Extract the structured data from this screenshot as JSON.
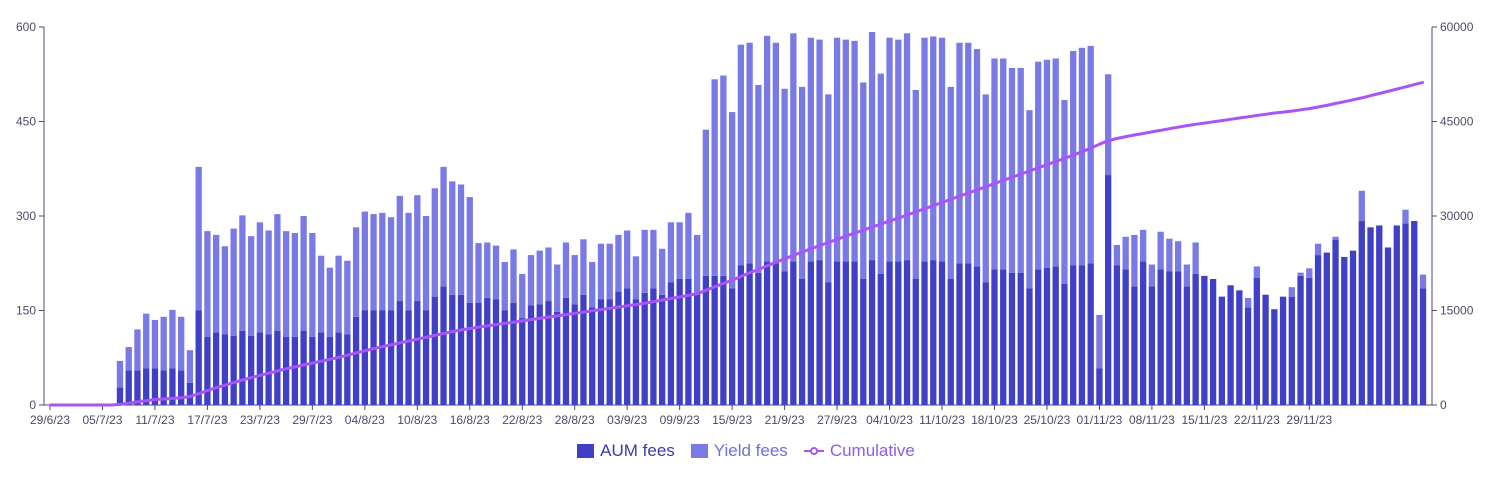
{
  "chart_data": {
    "type": "bar",
    "stacked": true,
    "x_labels": [
      "29/6/23",
      "05/7/23",
      "11/7/23",
      "17/7/23",
      "23/7/23",
      "29/7/23",
      "04/8/23",
      "10/8/23",
      "16/8/23",
      "22/8/23",
      "28/8/23",
      "03/9/23",
      "09/9/23",
      "15/9/23",
      "21/9/23",
      "27/9/23",
      "04/10/23",
      "11/10/23",
      "18/10/23",
      "25/10/23",
      "01/11/23",
      "08/11/23",
      "15/11/23",
      "22/11/23",
      "29/11/23"
    ],
    "left_axis": {
      "ticks": [
        "0",
        "150",
        "300",
        "450",
        "600"
      ],
      "ylim": [
        0,
        600
      ]
    },
    "right_axis": {
      "ticks": [
        "0",
        "15000",
        "30000",
        "45000",
        "60000"
      ],
      "ylim": [
        0,
        60000
      ]
    },
    "series": [
      {
        "name": "AUM fees",
        "color": "#3f3fc8",
        "values": [
          0,
          0,
          0,
          0,
          0,
          0,
          0,
          0,
          28,
          55,
          55,
          58,
          58,
          55,
          58,
          55,
          35,
          150,
          108,
          115,
          112,
          110,
          118,
          110,
          115,
          112,
          118,
          108,
          108,
          118,
          108,
          115,
          108,
          115,
          112,
          140,
          150,
          150,
          150,
          150,
          165,
          150,
          165,
          150,
          172,
          188,
          175,
          175,
          162,
          162,
          170,
          168,
          150,
          162,
          138,
          158,
          160,
          165,
          148,
          170,
          160,
          175,
          155,
          168,
          168,
          180,
          185,
          168,
          178,
          185,
          175,
          195,
          200,
          200,
          178,
          205,
          205,
          205,
          185,
          222,
          225,
          210,
          228,
          225,
          212,
          228,
          200,
          228,
          230,
          195,
          228,
          228,
          228,
          200,
          230,
          208,
          228,
          228,
          230,
          200,
          228,
          230,
          228,
          200,
          225,
          225,
          220,
          195,
          215,
          215,
          210,
          210,
          185,
          215,
          218,
          220,
          192,
          222,
          222,
          225,
          58,
          365,
          222,
          215,
          188,
          228,
          188,
          215,
          212,
          212,
          188,
          208,
          205,
          200,
          172,
          190,
          182,
          155,
          202,
          175,
          152,
          172,
          172,
          205,
          202,
          238,
          242,
          262,
          235,
          245,
          292,
          282,
          285,
          250,
          285,
          288,
          292,
          185
        ]
      },
      {
        "name": "Yield fees",
        "color": "#7a7ae6",
        "values": [
          0,
          0,
          0,
          0,
          0,
          0,
          0,
          0,
          42,
          37,
          65,
          87,
          77,
          85,
          93,
          85,
          52,
          228,
          168,
          155,
          140,
          170,
          183,
          158,
          175,
          165,
          185,
          168,
          165,
          182,
          165,
          122,
          110,
          122,
          117,
          142,
          157,
          153,
          155,
          148,
          167,
          155,
          168,
          150,
          172,
          190,
          180,
          175,
          168,
          95,
          88,
          85,
          77,
          85,
          70,
          80,
          85,
          85,
          75,
          88,
          78,
          88,
          72,
          88,
          88,
          90,
          92,
          68,
          100,
          93,
          73,
          95,
          90,
          105,
          92,
          232,
          312,
          318,
          280,
          350,
          350,
          298,
          358,
          350,
          290,
          362,
          305,
          355,
          350,
          298,
          355,
          352,
          350,
          312,
          362,
          318,
          355,
          352,
          360,
          300,
          355,
          355,
          355,
          305,
          350,
          350,
          345,
          298,
          335,
          335,
          325,
          325,
          283,
          330,
          330,
          330,
          292,
          340,
          345,
          345,
          85,
          160,
          32,
          52,
          82,
          50,
          35,
          60,
          52,
          48,
          35,
          50,
          0,
          0,
          0,
          0,
          0,
          15,
          18,
          0,
          0,
          0,
          15,
          5,
          15,
          18,
          0,
          5,
          0,
          0,
          48,
          0,
          0,
          0,
          0,
          22,
          0,
          22
        ]
      },
      {
        "name": "Cumulative",
        "color": "#a855f7",
        "axis": "right",
        "values": [
          0,
          0,
          0,
          0,
          0,
          0,
          0,
          0,
          100,
          300,
          500,
          700,
          850,
          950,
          1050,
          1150,
          1350,
          1800,
          2300,
          2750,
          3150,
          3550,
          3950,
          4350,
          4700,
          5050,
          5400,
          5750,
          6050,
          6350,
          6650,
          6950,
          7250,
          7550,
          7900,
          8250,
          8600,
          8950,
          9250,
          9550,
          9850,
          10150,
          10450,
          10750,
          11050,
          11350,
          11650,
          11900,
          12150,
          12350,
          12550,
          12750,
          12950,
          13150,
          13350,
          13550,
          13750,
          13950,
          14150,
          14350,
          14550,
          14750,
          14950,
          15150,
          15350,
          15550,
          15750,
          15950,
          16150,
          16400,
          16650,
          16900,
          17150,
          17400,
          17650,
          18200,
          18750,
          19300,
          19800,
          20400,
          21000,
          21500,
          22100,
          22650,
          23200,
          23750,
          24250,
          24800,
          25300,
          25800,
          26300,
          26800,
          27300,
          27750,
          28250,
          28700,
          29200,
          29650,
          30150,
          30650,
          31150,
          31650,
          32150,
          32650,
          33150,
          33650,
          34150,
          34650,
          35150,
          35650,
          36150,
          36650,
          37150,
          37650,
          38150,
          38650,
          39150,
          39650,
          40200,
          40750,
          41400,
          41950,
          42300,
          42600,
          42850,
          43100,
          43350,
          43600,
          43850,
          44100,
          44350,
          44550,
          44750,
          44950,
          45150,
          45350,
          45550,
          45750,
          45950,
          46150,
          46350,
          46500,
          46650,
          46850,
          47050,
          47300,
          47550,
          47850,
          48150,
          48450,
          48750,
          49100,
          49450,
          49800,
          50150,
          50500,
          50850,
          51200
        ]
      }
    ],
    "grid": false,
    "legend_position": "bottom-center"
  },
  "legend": {
    "aum": "AUM fees",
    "yield": "Yield fees",
    "cumulative": "Cumulative"
  },
  "colors": {
    "aum": "#3f3fc8",
    "yield": "#7a7ae6",
    "cumulative": "#a855f7",
    "axis": "#4b4b6b",
    "legend_text_aum": "#3a3ab0",
    "legend_text_yield": "#6f6fe0",
    "legend_text_cum": "#8f5be8"
  }
}
